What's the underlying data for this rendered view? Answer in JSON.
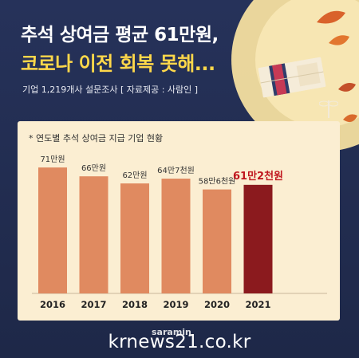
{
  "header": {
    "title_line1_prefix": "추석 상여금",
    "title_line1_emph": "평균 61만원,",
    "title_line2": "코로나 이전 회복 못해...",
    "subtitle": "기업 1,219개사 설문조사  [ 자료제공 : 사람인 ]"
  },
  "chart_data": {
    "type": "bar",
    "title": "* 연도별 추석 상여금 지급 기업 현황",
    "categories": [
      "2016",
      "2017",
      "2018",
      "2019",
      "2020",
      "2021"
    ],
    "values": [
      71,
      66,
      62,
      64.7,
      58.6,
      61.2
    ],
    "value_labels": [
      "71만원",
      "66만원",
      "62만원",
      "64만7천원",
      "58만6천원",
      "61만2천원"
    ],
    "ylim": [
      0,
      80
    ],
    "colors": {
      "bar": "#e08a60",
      "highlight_bar": "#8b1a1e",
      "highlight_label": "#c0171f"
    },
    "highlight_index": 5
  },
  "footer": {
    "brand": "saramin",
    "watermark": "krnews21.co.kr"
  }
}
